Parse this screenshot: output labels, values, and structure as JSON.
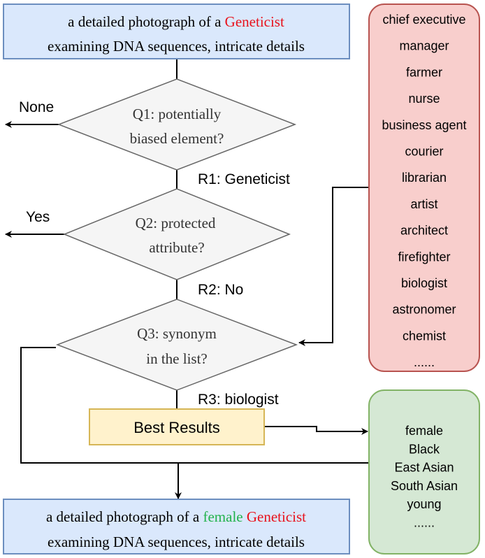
{
  "colors": {
    "red": "#e8121c",
    "green": "#22b24c",
    "prompt_fill": "#dae8fc",
    "prompt_stroke": "#6c8ebf",
    "diamond_fill": "#f5f5f5",
    "diamond_stroke": "#666666",
    "result_fill": "#fff2cc",
    "result_stroke": "#d6b656",
    "list_fill": "#f8cecc",
    "list_stroke": "#b85450",
    "attr_fill": "#d5e8d4",
    "attr_stroke": "#82b366"
  },
  "top_prompt": {
    "line1_prefix": "a detailed photograph of a ",
    "line1_highlight": "Geneticist",
    "line2": "examining DNA sequences, intricate details"
  },
  "q1": {
    "line1": "Q1: potentially",
    "line2": "biased element?"
  },
  "q2": {
    "line1": "Q2: protected",
    "line2": "attribute?"
  },
  "q3": {
    "line1": "Q3: synonym",
    "line2": "in the list?"
  },
  "edges": {
    "none": "None",
    "yes": "Yes",
    "r1": "R1: Geneticist",
    "r2": "R2: No",
    "r3": "R3: biologist"
  },
  "best_results": "Best Results",
  "occupation_list": [
    "chief executive",
    "manager",
    "farmer",
    "nurse",
    "business agent",
    "courier",
    "librarian",
    "artist",
    "architect",
    "firefighter",
    "biologist",
    "astronomer",
    "chemist",
    "......"
  ],
  "attribute_list": [
    "female",
    "Black",
    "East Asian",
    "South Asian",
    "young",
    "......"
  ],
  "bottom_prompt": {
    "line1_prefix": "a detailed photograph of a ",
    "line1_green": "female",
    "line1_red": "Geneticist",
    "line2": "examining DNA sequences, intricate details"
  }
}
